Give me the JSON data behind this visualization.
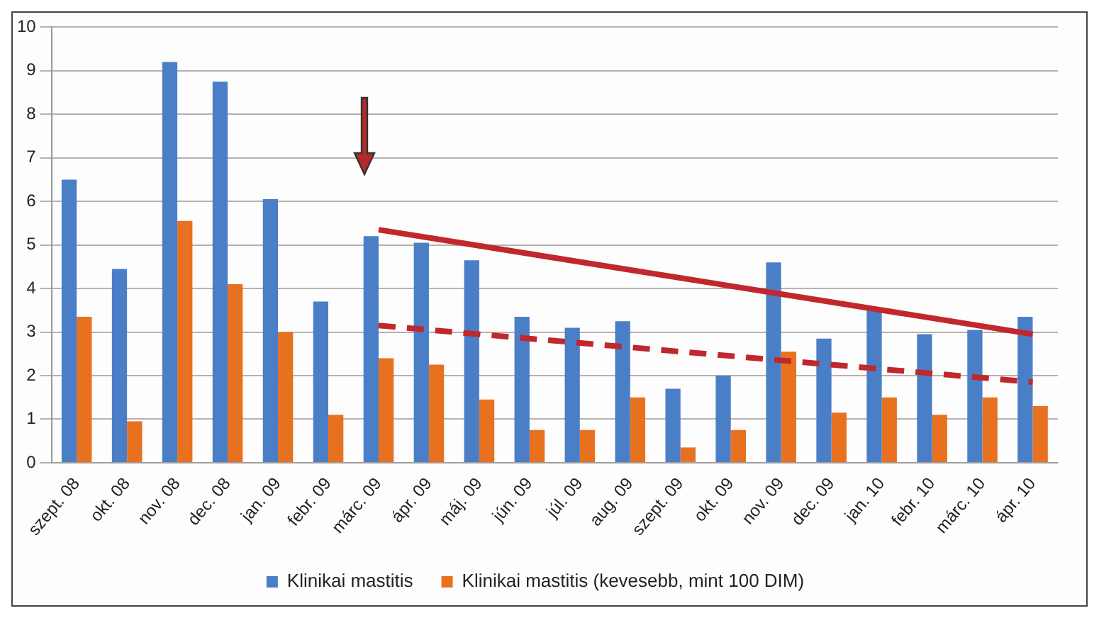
{
  "chart_data": {
    "type": "bar",
    "categories": [
      "szept. 08",
      "okt. 08",
      "nov. 08",
      "dec. 08",
      "jan. 09",
      "febr. 09",
      "márc. 09",
      "ápr. 09",
      "máj. 09",
      "jún. 09",
      "júl. 09",
      "aug. 09",
      "szept. 09",
      "okt. 09",
      "nov. 09",
      "dec. 09",
      "jan. 10",
      "febr. 10",
      "márc. 10",
      "ápr. 10"
    ],
    "series": [
      {
        "name": "Klinikai mastitis",
        "color": "#4a7fc8",
        "values": [
          6.5,
          4.45,
          9.2,
          8.75,
          6.05,
          3.7,
          5.2,
          5.05,
          4.65,
          3.35,
          3.1,
          3.25,
          1.7,
          2.0,
          4.6,
          2.85,
          3.55,
          2.95,
          3.05,
          3.35
        ]
      },
      {
        "name": "Klinikai mastitis (kevesebb, mint 100 DIM)",
        "color": "#e8711f",
        "values": [
          3.35,
          0.95,
          5.55,
          4.1,
          3.0,
          1.1,
          2.4,
          2.25,
          1.45,
          0.75,
          0.75,
          1.5,
          0.35,
          0.75,
          2.55,
          1.15,
          1.5,
          1.1,
          1.5,
          1.3
        ]
      },
      {
        "type": "line",
        "color": "#c0282d",
        "line_style": "solid",
        "values": [
          null,
          null,
          null,
          null,
          null,
          null,
          5.35,
          null,
          null,
          null,
          null,
          null,
          null,
          null,
          null,
          null,
          null,
          null,
          null,
          2.95
        ]
      },
      {
        "type": "line",
        "color": "#c0282d",
        "line_style": "dashed",
        "values": [
          null,
          null,
          null,
          null,
          null,
          null,
          3.15,
          null,
          null,
          null,
          null,
          null,
          null,
          null,
          null,
          null,
          null,
          null,
          null,
          1.85
        ]
      }
    ],
    "ylim": [
      0,
      10
    ],
    "yticks": [
      0,
      1,
      2,
      3,
      4,
      5,
      6,
      7,
      8,
      9,
      10
    ],
    "grid": "y",
    "legend": "bottom",
    "marker": "none"
  }
}
